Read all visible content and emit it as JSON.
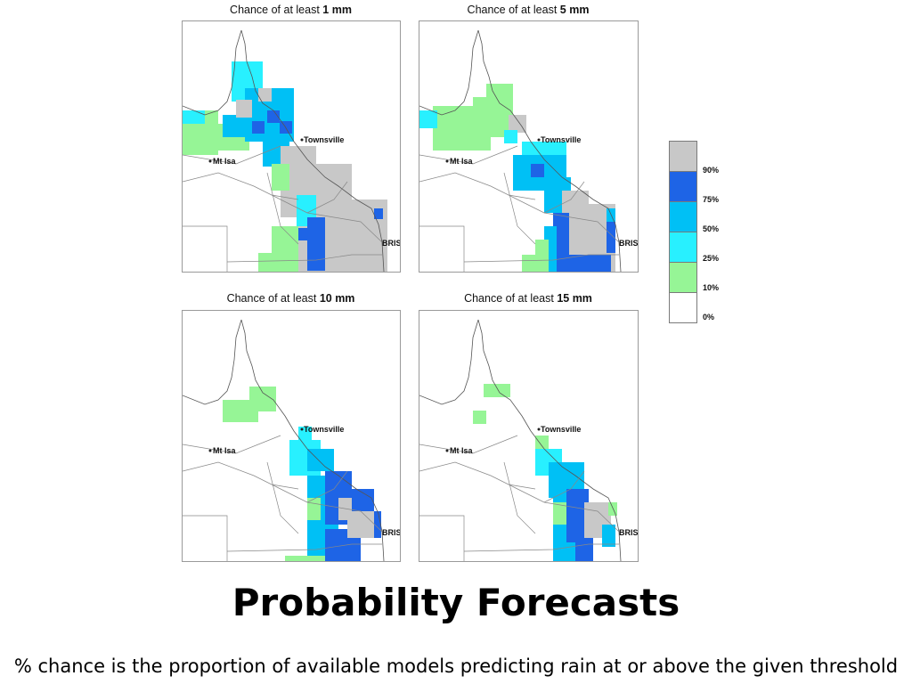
{
  "panels": [
    {
      "prefix": "Chance of at least ",
      "amount": "1 mm"
    },
    {
      "prefix": "Chance of at least ",
      "amount": "5 mm"
    },
    {
      "prefix": "Chance of at least ",
      "amount": "10 mm"
    },
    {
      "prefix": "Chance of at least ",
      "amount": "15 mm"
    }
  ],
  "places": {
    "townsville": "Townsville",
    "mt_isa": "Mt Isa",
    "bris": "BRIS"
  },
  "legend": {
    "labels": [
      "90%",
      "75%",
      "50%",
      "25%",
      "10%",
      "0%"
    ],
    "colors": [
      "#c8c8c8",
      "#1e64e6",
      "#00c0f5",
      "#28f0ff",
      "#96f596",
      "#ffffff"
    ]
  },
  "heading": "Probability Forecasts",
  "footer": "% chance is the proportion of available models predicting rain at or above the given threshold"
}
